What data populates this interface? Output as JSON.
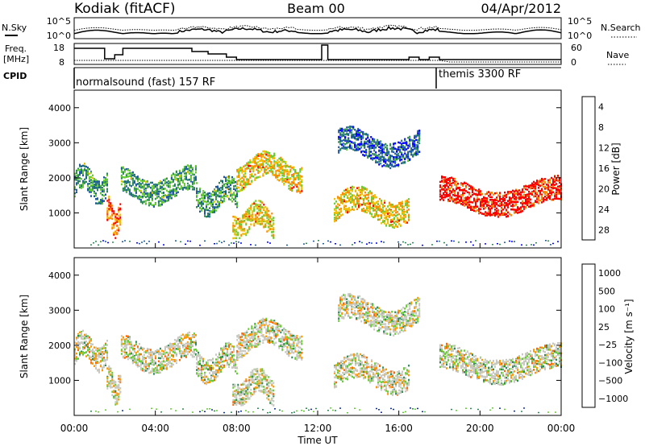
{
  "header": {
    "station": "Kodiak (fitACF)",
    "beam": "Beam 00",
    "date": "04/Apr/2012"
  },
  "noise_panel": {
    "left_label": "N.Sky",
    "right_label": "N.Search",
    "left_ticks": [
      "10^5",
      "10^0"
    ],
    "right_ticks": [
      "10^5",
      "10^0"
    ]
  },
  "freq_panel": {
    "left_label_line1": "Freq.",
    "left_label_line2": "[MHz]",
    "right_label": "Nave",
    "left_ticks": [
      "18",
      "8"
    ],
    "right_ticks": [
      "60",
      "0"
    ]
  },
  "cpid_panel": {
    "label": "CPID",
    "segments": [
      {
        "name": "normalsound (fast) 157 RF",
        "start_hour": 0
      },
      {
        "name": "themis 3300 RF",
        "start_hour": 18
      }
    ]
  },
  "power_panel": {
    "ylabel": "Slant Range [km]",
    "yticks": [
      "1000",
      "2000",
      "3000",
      "4000"
    ],
    "colorbar_label": "Power [dB]",
    "colorbar_ticks": [
      "4",
      "8",
      "12",
      "16",
      "20",
      "24",
      "28"
    ],
    "colors": [
      "#0000ff",
      "#1e5aa0",
      "#2e8b57",
      "#66cc33",
      "#f0c000",
      "#ff8800",
      "#ff0000"
    ]
  },
  "velocity_panel": {
    "ylabel": "Slant Range [km]",
    "yticks": [
      "1000",
      "2000",
      "3000",
      "4000"
    ],
    "colorbar_label": "Velocity [m s⁻¹]",
    "colorbar_ticks": [
      "1000",
      "500",
      "100",
      "25",
      "−25",
      "−100",
      "−500",
      "−1000"
    ],
    "colors": [
      "#1030a0",
      "#2e8b57",
      "#66cc33",
      "#c8c8c0",
      "#c8c8c0",
      "#ff9900",
      "#ff6600",
      "#ff0000"
    ]
  },
  "x_axis": {
    "ticks": [
      "00:00",
      "04:00",
      "08:00",
      "12:00",
      "16:00",
      "20:00",
      "00:00"
    ],
    "label": "Time UT"
  },
  "chart_data": {
    "type": "heatmap",
    "title": "Kodiak (fitACF)",
    "x_unit": "hours UT",
    "xlim": [
      0,
      24
    ],
    "ylim_km": [
      0,
      4500
    ],
    "power_db_range": [
      0,
      30
    ],
    "velocity_range": [
      -1000,
      1000
    ],
    "power_bands": [
      {
        "t_start": 0,
        "t_end": 1.6,
        "range_center": 1850,
        "level": 3
      },
      {
        "t_start": 1.6,
        "t_end": 2.3,
        "range_center": 900,
        "level": 6
      },
      {
        "t_start": 2.3,
        "t_end": 6,
        "range_center": 1800,
        "level": 3
      },
      {
        "t_start": 6,
        "t_end": 8,
        "range_center": 1500,
        "level": 3
      },
      {
        "t_start": 7.8,
        "t_end": 9.8,
        "range_center": 800,
        "level": 5
      },
      {
        "t_start": 8,
        "t_end": 11.2,
        "range_center": 2200,
        "level": 5
      },
      {
        "t_start": 12.8,
        "t_end": 16.5,
        "range_center": 1200,
        "level": 5
      },
      {
        "t_start": 13,
        "t_end": 17,
        "range_center": 2900,
        "level": 2
      },
      {
        "t_start": 18,
        "t_end": 24,
        "range_center": 1500,
        "level": 7
      }
    ]
  }
}
